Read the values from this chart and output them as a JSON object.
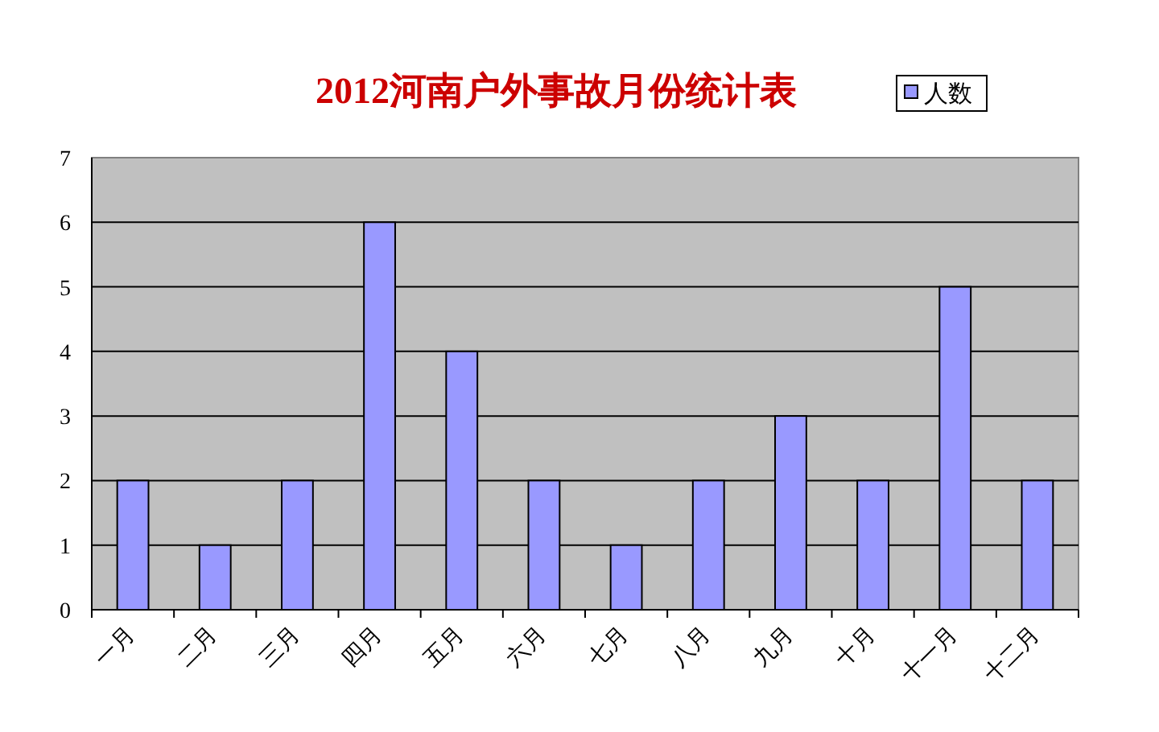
{
  "chart_data": {
    "type": "bar",
    "title": "2012河南户外事故月份统计表",
    "categories": [
      "一月",
      "二月",
      "三月",
      "四月",
      "五月",
      "六月",
      "七月",
      "八月",
      "九月",
      "十月",
      "十一月",
      "十二月"
    ],
    "series": [
      {
        "name": "人数",
        "color": "#9999ff",
        "values": [
          2,
          1,
          2,
          6,
          4,
          2,
          1,
          2,
          3,
          2,
          5,
          2
        ]
      }
    ],
    "ylim": [
      0,
      7
    ],
    "yticks": [
      0,
      1,
      2,
      3,
      4,
      5,
      6,
      7
    ],
    "grid": "y",
    "legend": "top right"
  }
}
